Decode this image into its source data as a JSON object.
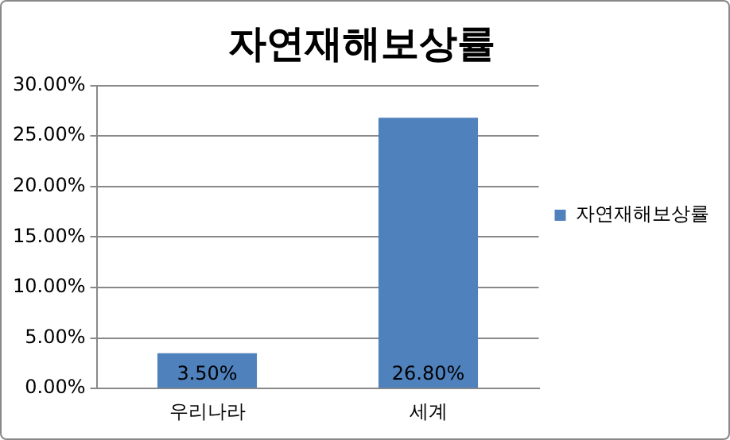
{
  "chart_data": {
    "type": "bar",
    "title": "자연재해보상률",
    "categories": [
      "우리나라",
      "세계"
    ],
    "series": [
      {
        "name": "자연재해보상률",
        "color": "#4f81bd",
        "values": [
          3.5,
          26.8
        ],
        "value_labels": [
          "3.50%",
          "26.80%"
        ]
      }
    ],
    "ylim": [
      0,
      30
    ],
    "yticks": [
      {
        "value": 0,
        "label": "0.00%"
      },
      {
        "value": 5,
        "label": "5.00%"
      },
      {
        "value": 10,
        "label": "10.00%"
      },
      {
        "value": 15,
        "label": "15.00%"
      },
      {
        "value": 20,
        "label": "20.00%"
      },
      {
        "value": 25,
        "label": "25.00%"
      },
      {
        "value": 30,
        "label": "30.00%"
      }
    ],
    "grid": "y",
    "legend": "right"
  }
}
